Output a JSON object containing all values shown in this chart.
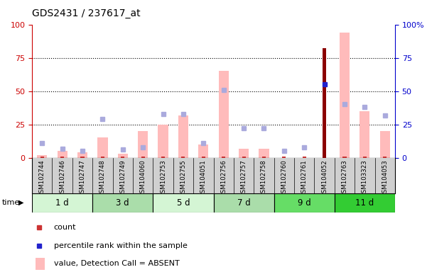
{
  "title": "GDS2431 / 237617_at",
  "samples": [
    "GSM102744",
    "GSM102746",
    "GSM102747",
    "GSM102748",
    "GSM102749",
    "GSM104060",
    "GSM102753",
    "GSM102755",
    "GSM104051",
    "GSM102756",
    "GSM102757",
    "GSM102758",
    "GSM102760",
    "GSM102761",
    "GSM104052",
    "GSM102763",
    "GSM103323",
    "GSM104053"
  ],
  "time_groups": [
    {
      "label": "1 d",
      "start": 0,
      "end": 3,
      "color": "#d4f5d4"
    },
    {
      "label": "3 d",
      "start": 3,
      "end": 6,
      "color": "#aaddaa"
    },
    {
      "label": "5 d",
      "start": 6,
      "end": 9,
      "color": "#d4f5d4"
    },
    {
      "label": "7 d",
      "start": 9,
      "end": 12,
      "color": "#aaddaa"
    },
    {
      "label": "9 d",
      "start": 12,
      "end": 15,
      "color": "#66dd66"
    },
    {
      "label": "11 d",
      "start": 15,
      "end": 18,
      "color": "#33cc33"
    }
  ],
  "count_values": [
    1,
    1,
    1,
    1,
    1,
    1,
    1,
    1,
    1,
    1,
    1,
    1,
    1,
    1,
    82,
    1,
    1,
    1
  ],
  "count_is_dark": [
    false,
    false,
    false,
    false,
    false,
    false,
    false,
    false,
    false,
    false,
    false,
    false,
    false,
    false,
    true,
    false,
    false,
    false
  ],
  "pink_bar_values": [
    2,
    5,
    4,
    15,
    3,
    20,
    25,
    32,
    10,
    65,
    7,
    7,
    0,
    0,
    0,
    94,
    35,
    20
  ],
  "blue_dot_values": [
    0,
    0,
    0,
    0,
    0,
    0,
    0,
    0,
    0,
    0,
    0,
    0,
    0,
    0,
    55,
    0,
    0,
    0
  ],
  "rank_absent_values": [
    11,
    7,
    5,
    29,
    6,
    8,
    33,
    33,
    11,
    51,
    22,
    22,
    5,
    8,
    0,
    40,
    38,
    32
  ],
  "ylim": [
    0,
    100
  ],
  "grid_lines": [
    25,
    50,
    75
  ],
  "left_axis_color": "#cc0000",
  "right_axis_color": "#0000cc",
  "plot_bg": "#ffffff"
}
